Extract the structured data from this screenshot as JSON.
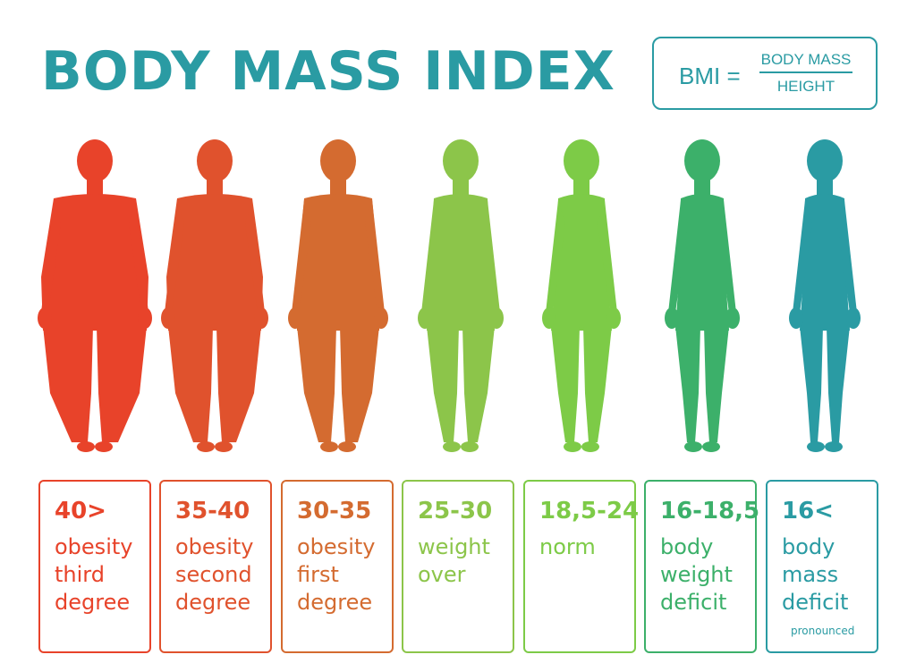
{
  "title": "BODY MASS INDEX",
  "formula": {
    "lhs": "BMI =",
    "numerator": "BODY MASS",
    "denominator": "HEIGHT"
  },
  "accent": "#2a9ba3",
  "categories": [
    {
      "range": "40>",
      "desc": "obesity\nthird\ndegree",
      "note": "",
      "color": "#e8432a"
    },
    {
      "range": "35-40",
      "desc": "obesity\nsecond\ndegree",
      "note": "",
      "color": "#e0522d"
    },
    {
      "range": "30-35",
      "desc": "obesity\nfirst\ndegree",
      "note": "",
      "color": "#d46b30"
    },
    {
      "range": "25-30",
      "desc": "weight\nover",
      "note": "",
      "color": "#8cc54a"
    },
    {
      "range": "18,5-24",
      "desc": "norm",
      "note": "",
      "color": "#7dcb47"
    },
    {
      "range": "16-18,5",
      "desc": "body\nweight\ndeficit",
      "note": "",
      "color": "#3cb06a"
    },
    {
      "range": "16<",
      "desc": "body\nmass\ndeficit",
      "note": "pronounced",
      "color": "#2a9ba3"
    }
  ]
}
